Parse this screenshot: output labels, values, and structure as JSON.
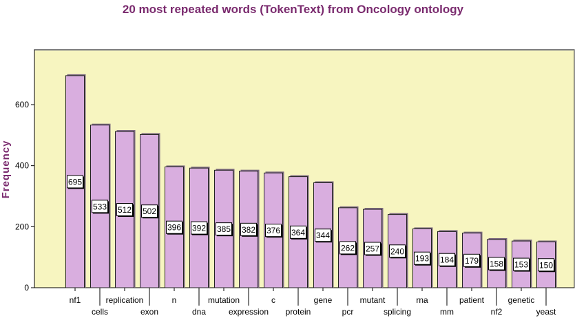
{
  "chart_data": {
    "type": "bar",
    "title": "20 most repeated words (TokenText) from Oncology ontology",
    "xlabel": "",
    "ylabel": "Frequency",
    "ylim": [
      0,
      780
    ],
    "yticks": [
      0,
      200,
      400,
      600
    ],
    "categories": [
      "nf1",
      "cells",
      "replication",
      "exon",
      "n",
      "dna",
      "mutation",
      "expression",
      "c",
      "protein",
      "gene",
      "pcr",
      "mutant",
      "splicing",
      "rna",
      "mm",
      "patient",
      "nf2",
      "genetic",
      "yeast"
    ],
    "values": [
      695,
      533,
      512,
      502,
      396,
      392,
      385,
      382,
      376,
      364,
      344,
      262,
      257,
      240,
      193,
      184,
      179,
      158,
      153,
      150
    ],
    "grid": false,
    "legend": "none",
    "colors": {
      "plot_background": "#f7f5c0",
      "bar_fill": "#d9aedf",
      "bar_stroke": "#222222",
      "title_color": "#7a2a6e",
      "ylabel_color": "#7a2a6e"
    }
  }
}
